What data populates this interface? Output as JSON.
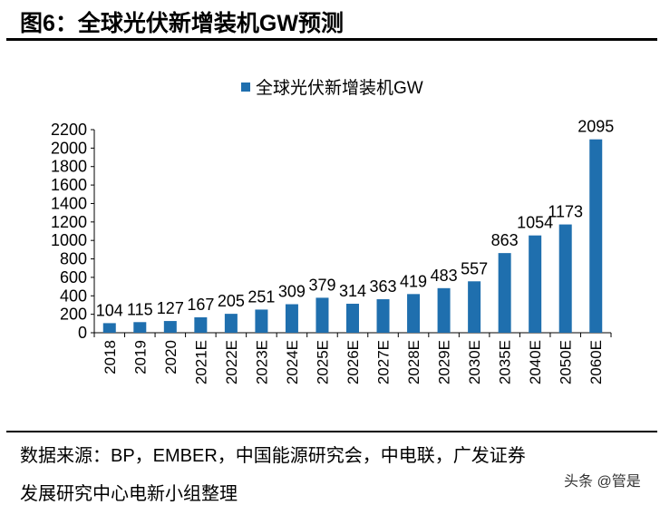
{
  "title": "图6：全球光伏新增装机GW预测",
  "source_line1": "数据来源：BP，EMBER，中国能源研究会，中电联，广发证券",
  "source_line2": "发展研究中心电新小组整理",
  "watermark": "头条 @管是",
  "chart_data": {
    "type": "bar",
    "title": "",
    "xlabel": "",
    "ylabel": "",
    "legend": {
      "entries": [
        "全球光伏新增装机GW"
      ],
      "placement": "top"
    },
    "categories": [
      "2018",
      "2019",
      "2020",
      "2021E",
      "2022E",
      "2023E",
      "2024E",
      "2025E",
      "2026E",
      "2027E",
      "2028E",
      "2029E",
      "2030E",
      "2035E",
      "2040E",
      "2050E",
      "2060E"
    ],
    "series": [
      {
        "name": "全球光伏新增装机GW",
        "values": [
          104,
          115,
          127,
          167,
          205,
          251,
          309,
          379,
          314,
          363,
          419,
          483,
          557,
          863,
          1054,
          1173,
          2095
        ],
        "color": "#1f6fae"
      }
    ],
    "ylim": [
      0,
      2200
    ],
    "yticks": [
      0,
      200,
      400,
      600,
      800,
      1000,
      1200,
      1400,
      1600,
      1800,
      2000,
      2200
    ],
    "grid": false,
    "data_labels": true
  }
}
